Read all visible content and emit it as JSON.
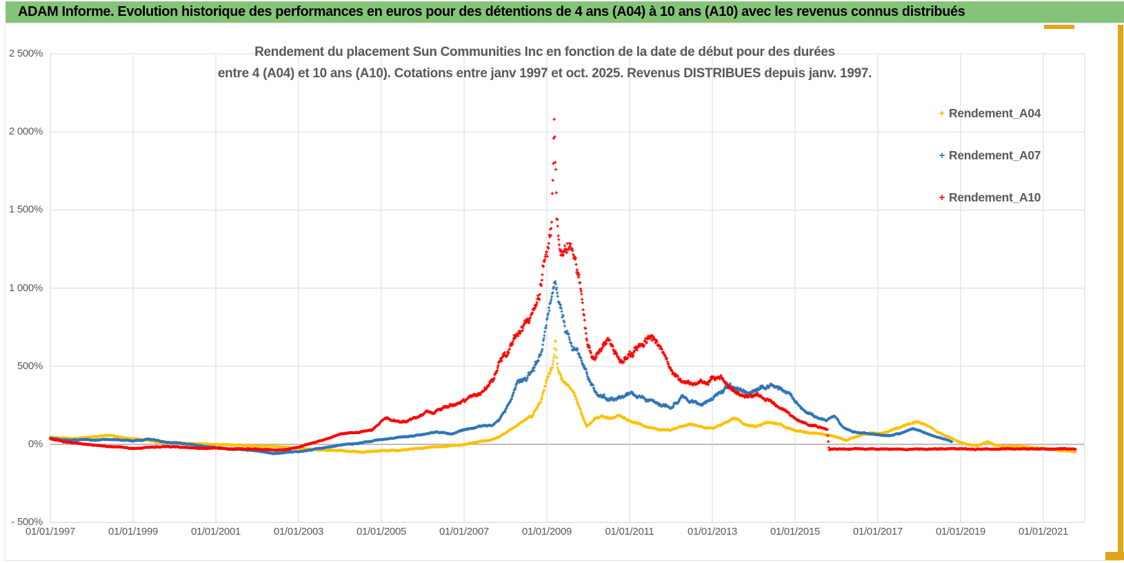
{
  "header": {
    "title": "ADAM Informe. Evolution historique des performances en euros pour des détentions de 4 ans (A04) à 10 ans (A10) avec les revenus connus distribués",
    "banner_color": "#85C379",
    "accent_gold_color": "#E2A418"
  },
  "legend": {
    "marker_glyph": "+",
    "position": "right"
  },
  "chart_data": {
    "type": "scatter",
    "marker": "plus",
    "title_line1": "Rendement du placement Sun Communities Inc en fonction de la date de début pour des durées",
    "title_line2": "entre 4 (A04) et 10 ans (A10). Cotations entre janv 1997 et oct. 2025. Revenus DISTRIBUES depuis janv. 1997.",
    "grid": true,
    "x_axis": {
      "min_year": 1997.0,
      "max_year": 2022.0,
      "tick_years": [
        1997,
        1999,
        2001,
        2003,
        2005,
        2007,
        2009,
        2011,
        2013,
        2015,
        2017,
        2019,
        2021
      ],
      "tick_labels": [
        "01/01/1997",
        "01/01/1999",
        "01/01/2001",
        "01/01/2003",
        "01/01/2005",
        "01/01/2007",
        "01/01/2009",
        "01/01/2011",
        "01/01/2013",
        "01/01/2015",
        "01/01/2017",
        "01/01/2019",
        "01/01/2021"
      ]
    },
    "y_axis": {
      "min": -500,
      "max": 2500,
      "unit": "%",
      "tick_values": [
        2500,
        2000,
        1500,
        1000,
        500,
        0,
        -500
      ],
      "tick_labels": [
        "2 500%",
        "2 000%",
        "1 500%",
        "1 000%",
        "500%",
        "0%",
        "- 500%"
      ]
    },
    "series": [
      {
        "name": "Rendement_A04",
        "color": "#FFC000",
        "seed": 11,
        "waypoints": [
          [
            1997.0,
            45
          ],
          [
            1997.3,
            40
          ],
          [
            1997.7,
            38
          ],
          [
            1998.1,
            50
          ],
          [
            1998.45,
            60
          ],
          [
            1998.8,
            40
          ],
          [
            1999.2,
            35
          ],
          [
            1999.6,
            18
          ],
          [
            2000.0,
            12
          ],
          [
            2000.5,
            6
          ],
          [
            2001.0,
            0
          ],
          [
            2001.5,
            -6
          ],
          [
            2002.0,
            -10
          ],
          [
            2002.5,
            -16
          ],
          [
            2003.0,
            -25
          ],
          [
            2003.5,
            -35
          ],
          [
            2004.0,
            -42
          ],
          [
            2004.5,
            -50
          ],
          [
            2005.0,
            -42
          ],
          [
            2005.5,
            -38
          ],
          [
            2006.0,
            -22
          ],
          [
            2006.5,
            -12
          ],
          [
            2007.0,
            -2
          ],
          [
            2007.3,
            14
          ],
          [
            2007.6,
            25
          ],
          [
            2007.85,
            48
          ],
          [
            2008.05,
            80
          ],
          [
            2008.25,
            115
          ],
          [
            2008.45,
            150
          ],
          [
            2008.65,
            185
          ],
          [
            2008.85,
            280
          ],
          [
            2009.0,
            420
          ],
          [
            2009.1,
            480
          ],
          [
            2009.17,
            540
          ],
          [
            2009.21,
            690
          ],
          [
            2009.27,
            480
          ],
          [
            2009.4,
            400
          ],
          [
            2009.55,
            350
          ],
          [
            2009.7,
            290
          ],
          [
            2009.85,
            190
          ],
          [
            2009.97,
            115
          ],
          [
            2010.15,
            160
          ],
          [
            2010.35,
            185
          ],
          [
            2010.55,
            165
          ],
          [
            2010.75,
            190
          ],
          [
            2010.95,
            155
          ],
          [
            2011.15,
            130
          ],
          [
            2011.4,
            115
          ],
          [
            2011.7,
            95
          ],
          [
            2012.0,
            92
          ],
          [
            2012.25,
            112
          ],
          [
            2012.5,
            130
          ],
          [
            2012.8,
            105
          ],
          [
            2013.05,
            102
          ],
          [
            2013.3,
            140
          ],
          [
            2013.55,
            170
          ],
          [
            2013.8,
            128
          ],
          [
            2014.05,
            115
          ],
          [
            2014.35,
            142
          ],
          [
            2014.65,
            128
          ],
          [
            2014.95,
            92
          ],
          [
            2015.2,
            78
          ],
          [
            2015.5,
            68
          ],
          [
            2015.8,
            58
          ],
          [
            2016.0,
            48
          ],
          [
            2016.25,
            26
          ],
          [
            2016.55,
            55
          ],
          [
            2016.85,
            75
          ],
          [
            2017.1,
            72
          ],
          [
            2017.4,
            98
          ],
          [
            2017.7,
            125
          ],
          [
            2017.95,
            148
          ],
          [
            2018.15,
            125
          ],
          [
            2018.4,
            85
          ],
          [
            2018.7,
            48
          ],
          [
            2018.95,
            18
          ],
          [
            2019.15,
            2
          ],
          [
            2019.4,
            -12
          ],
          [
            2019.65,
            15
          ],
          [
            2019.85,
            -8
          ],
          [
            2020.1,
            -14
          ],
          [
            2020.4,
            -12
          ],
          [
            2020.7,
            -20
          ],
          [
            2021.0,
            -28
          ],
          [
            2021.3,
            -34
          ],
          [
            2021.55,
            -40
          ],
          [
            2021.79,
            -45
          ]
        ]
      },
      {
        "name": "Rendement_A07",
        "color": "#2E75B6",
        "seed": 22,
        "waypoints": [
          [
            1997.0,
            40
          ],
          [
            1997.4,
            30
          ],
          [
            1998.0,
            28
          ],
          [
            1998.5,
            33
          ],
          [
            1999.0,
            20
          ],
          [
            1999.4,
            35
          ],
          [
            1999.8,
            16
          ],
          [
            2000.2,
            4
          ],
          [
            2000.6,
            -10
          ],
          [
            2001.0,
            -22
          ],
          [
            2001.5,
            -32
          ],
          [
            2002.0,
            -44
          ],
          [
            2002.5,
            -60
          ],
          [
            2003.0,
            -46
          ],
          [
            2003.5,
            -26
          ],
          [
            2004.0,
            -6
          ],
          [
            2004.5,
            10
          ],
          [
            2005.0,
            30
          ],
          [
            2005.5,
            46
          ],
          [
            2006.0,
            62
          ],
          [
            2006.35,
            78
          ],
          [
            2006.7,
            68
          ],
          [
            2007.0,
            95
          ],
          [
            2007.35,
            112
          ],
          [
            2007.65,
            120
          ],
          [
            2007.85,
            155
          ],
          [
            2008.0,
            215
          ],
          [
            2008.15,
            300
          ],
          [
            2008.3,
            405
          ],
          [
            2008.5,
            435
          ],
          [
            2008.7,
            480
          ],
          [
            2008.85,
            590
          ],
          [
            2009.0,
            780
          ],
          [
            2009.1,
            920
          ],
          [
            2009.2,
            1080
          ],
          [
            2009.3,
            880
          ],
          [
            2009.45,
            760
          ],
          [
            2009.6,
            650
          ],
          [
            2009.75,
            590
          ],
          [
            2009.9,
            500
          ],
          [
            2010.05,
            380
          ],
          [
            2010.25,
            330
          ],
          [
            2010.45,
            300
          ],
          [
            2010.65,
            285
          ],
          [
            2010.85,
            300
          ],
          [
            2011.05,
            310
          ],
          [
            2011.3,
            292
          ],
          [
            2011.55,
            272
          ],
          [
            2011.8,
            258
          ],
          [
            2012.05,
            252
          ],
          [
            2012.3,
            298
          ],
          [
            2012.55,
            278
          ],
          [
            2012.75,
            252
          ],
          [
            2012.95,
            280
          ],
          [
            2013.15,
            330
          ],
          [
            2013.4,
            368
          ],
          [
            2013.65,
            340
          ],
          [
            2013.9,
            332
          ],
          [
            2014.15,
            360
          ],
          [
            2014.4,
            372
          ],
          [
            2014.65,
            350
          ],
          [
            2014.85,
            320
          ],
          [
            2015.05,
            265
          ],
          [
            2015.25,
            205
          ],
          [
            2015.5,
            172
          ],
          [
            2015.75,
            152
          ],
          [
            2015.95,
            185
          ],
          [
            2016.15,
            115
          ],
          [
            2016.4,
            80
          ],
          [
            2016.7,
            70
          ],
          [
            2017.0,
            62
          ],
          [
            2017.25,
            55
          ],
          [
            2017.55,
            72
          ],
          [
            2017.85,
            102
          ],
          [
            2018.0,
            88
          ],
          [
            2018.25,
            60
          ],
          [
            2018.55,
            38
          ],
          [
            2018.8,
            16
          ]
        ]
      },
      {
        "name": "Rendement_A10",
        "color": "#FF0000",
        "seed": 33,
        "waypoints": [
          [
            1997.0,
            35
          ],
          [
            1997.35,
            15
          ],
          [
            1997.7,
            5
          ],
          [
            1998.1,
            -6
          ],
          [
            1998.5,
            -16
          ],
          [
            1999.0,
            -26
          ],
          [
            1999.5,
            -20
          ],
          [
            2000.0,
            -16
          ],
          [
            2000.5,
            -23
          ],
          [
            2001.0,
            -26
          ],
          [
            2001.5,
            -31
          ],
          [
            2002.0,
            -30
          ],
          [
            2002.5,
            -38
          ],
          [
            2003.0,
            -20
          ],
          [
            2003.5,
            20
          ],
          [
            2004.0,
            65
          ],
          [
            2004.5,
            80
          ],
          [
            2004.8,
            98
          ],
          [
            2005.1,
            170
          ],
          [
            2005.45,
            142
          ],
          [
            2005.75,
            160
          ],
          [
            2006.05,
            196
          ],
          [
            2006.5,
            230
          ],
          [
            2007.0,
            272
          ],
          [
            2007.4,
            325
          ],
          [
            2007.7,
            430
          ],
          [
            2007.85,
            555
          ],
          [
            2008.05,
            590
          ],
          [
            2008.25,
            665
          ],
          [
            2008.45,
            740
          ],
          [
            2008.65,
            810
          ],
          [
            2008.8,
            910
          ],
          [
            2008.95,
            1150
          ],
          [
            2009.05,
            1270
          ],
          [
            2009.12,
            1400
          ],
          [
            2009.18,
            2085
          ],
          [
            2009.24,
            1470
          ],
          [
            2009.32,
            1260
          ],
          [
            2009.45,
            1255
          ],
          [
            2009.57,
            1305
          ],
          [
            2009.68,
            1175
          ],
          [
            2009.78,
            1050
          ],
          [
            2009.88,
            820
          ],
          [
            2009.98,
            635
          ],
          [
            2010.15,
            545
          ],
          [
            2010.35,
            625
          ],
          [
            2010.5,
            680
          ],
          [
            2010.65,
            595
          ],
          [
            2010.85,
            545
          ],
          [
            2011.05,
            565
          ],
          [
            2011.25,
            625
          ],
          [
            2011.45,
            700
          ],
          [
            2011.65,
            645
          ],
          [
            2011.85,
            570
          ],
          [
            2012.05,
            465
          ],
          [
            2012.35,
            400
          ],
          [
            2012.65,
            392
          ],
          [
            2012.9,
            432
          ],
          [
            2013.05,
            450
          ],
          [
            2013.25,
            405
          ],
          [
            2013.5,
            335
          ],
          [
            2013.8,
            305
          ],
          [
            2014.05,
            312
          ],
          [
            2014.35,
            278
          ],
          [
            2014.65,
            235
          ],
          [
            2014.9,
            180
          ],
          [
            2015.1,
            148
          ],
          [
            2015.35,
            122
          ],
          [
            2015.6,
            112
          ],
          [
            2015.78,
            98
          ],
          [
            2015.82,
            -30
          ],
          [
            2021.79,
            -30
          ]
        ]
      }
    ]
  }
}
